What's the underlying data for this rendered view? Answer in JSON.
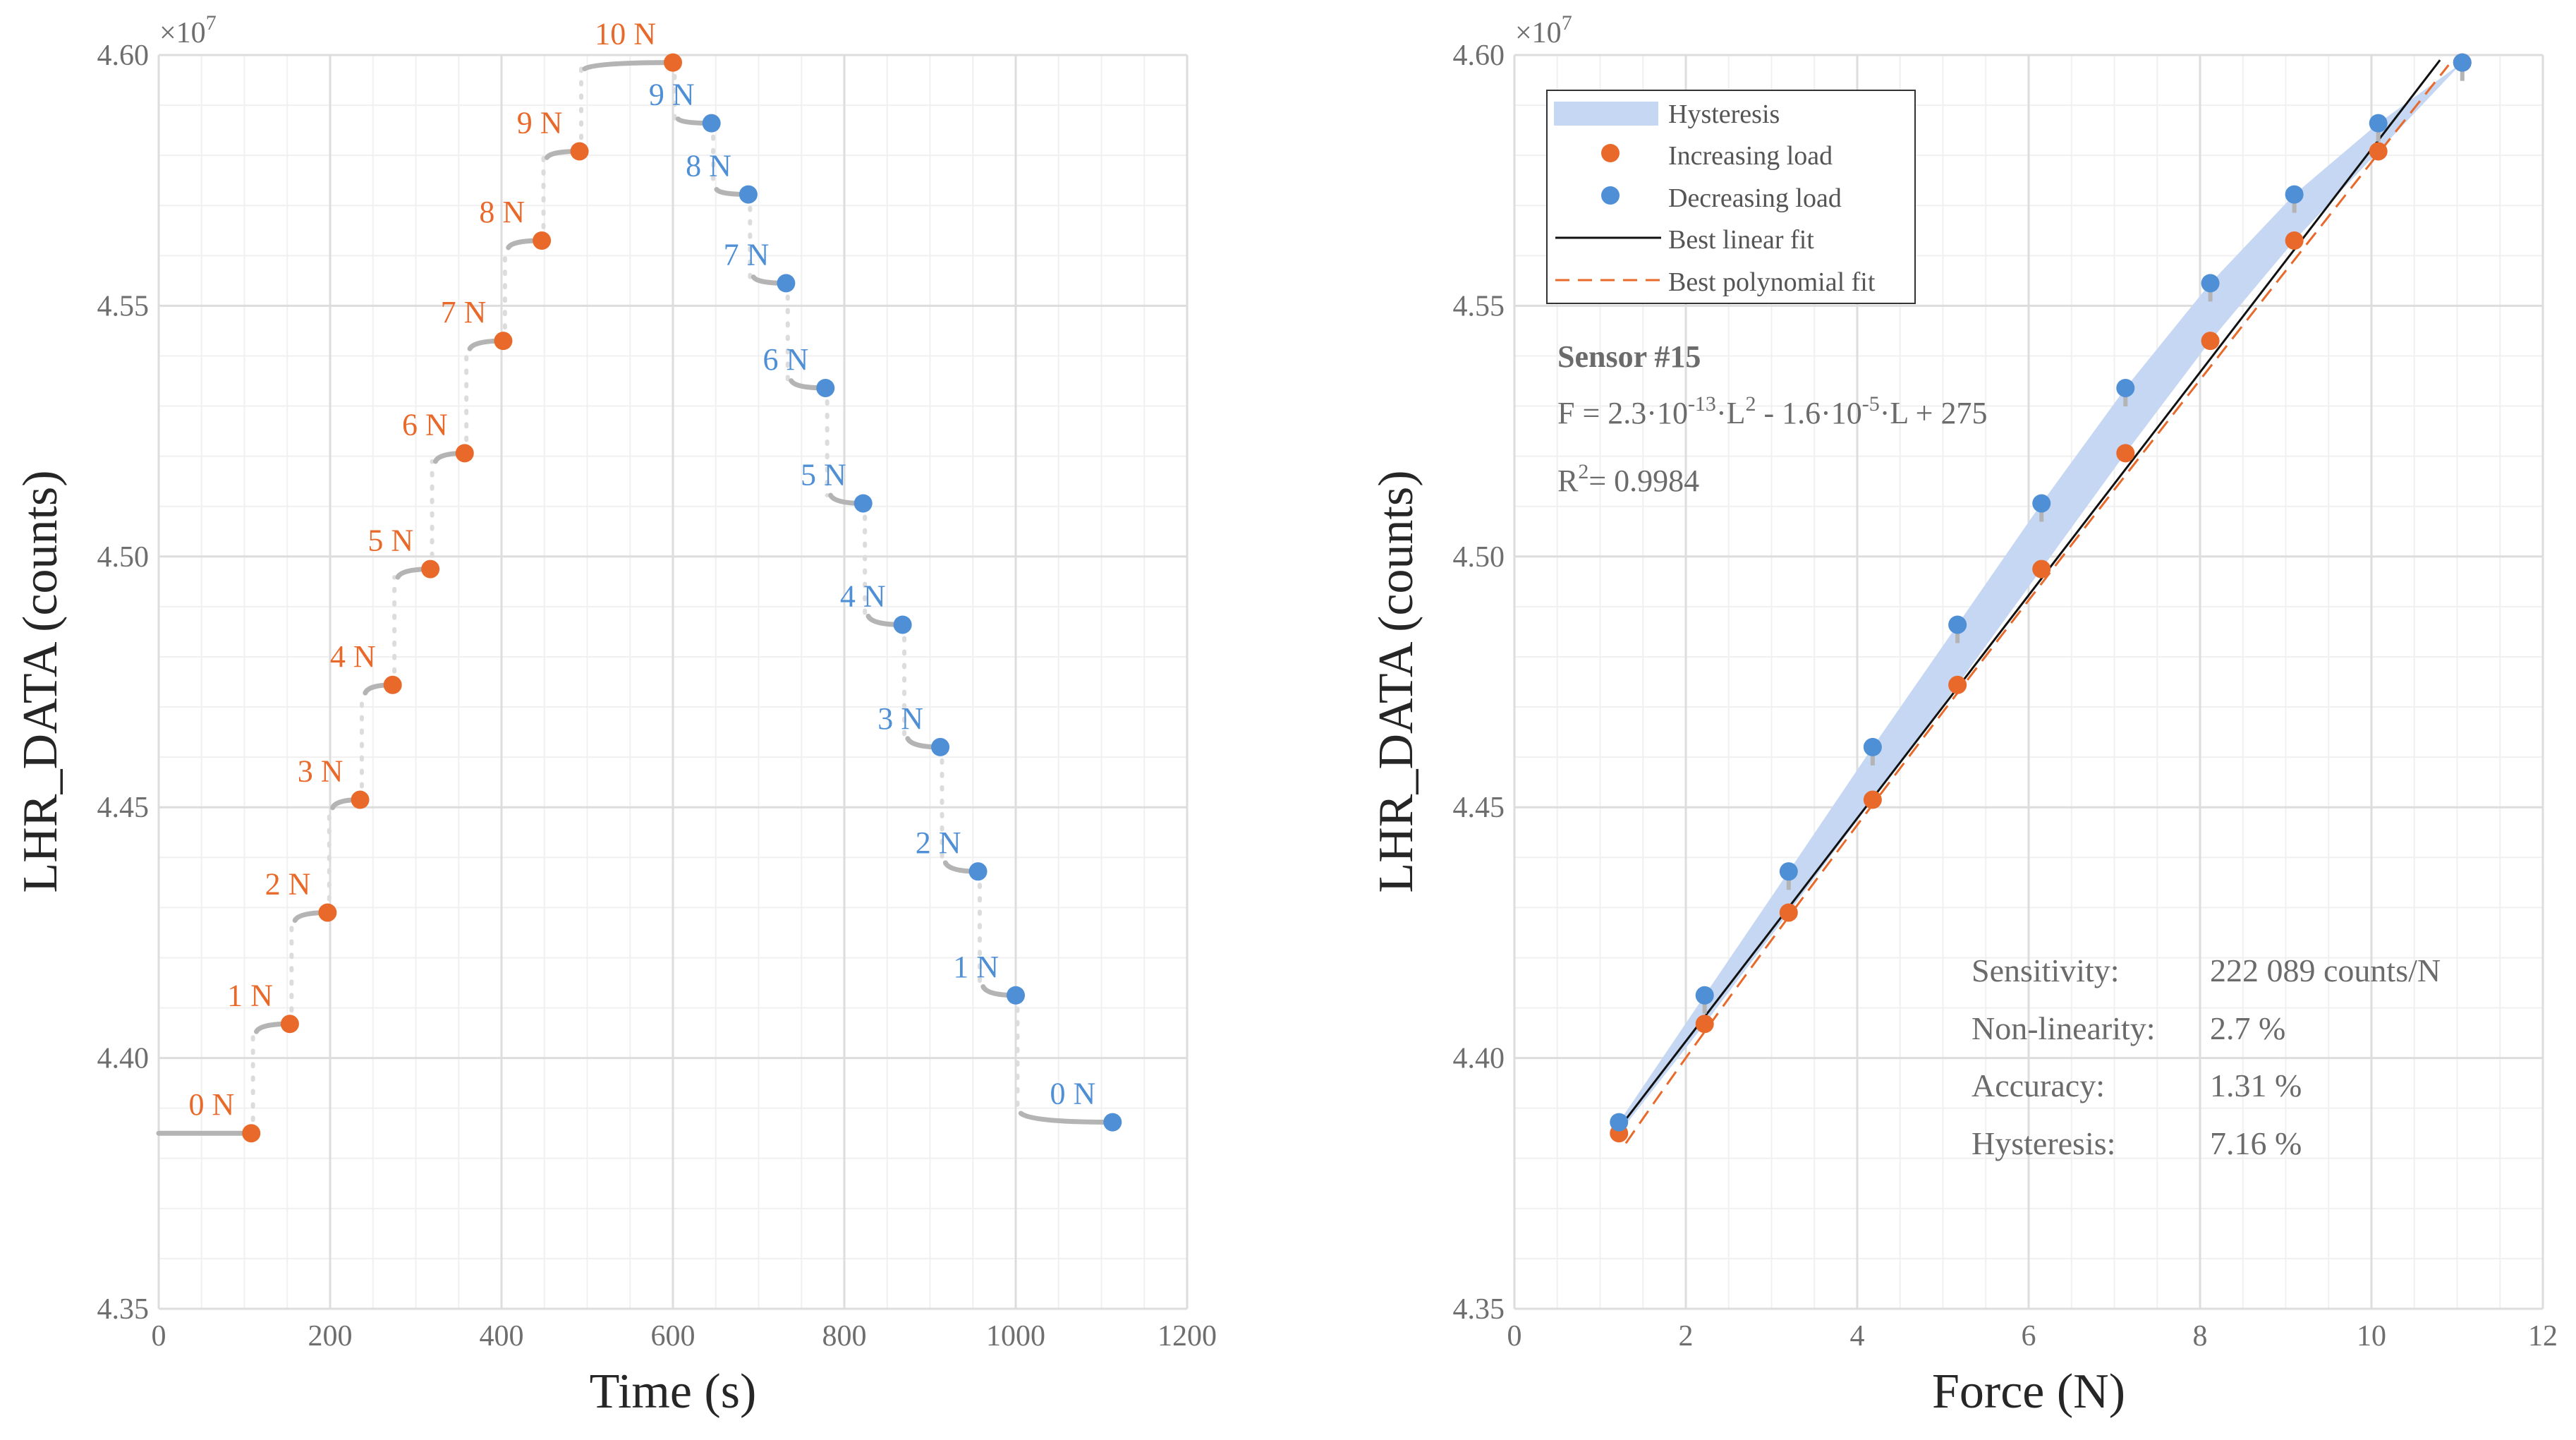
{
  "chart_data": [
    {
      "type": "scatter",
      "name": "time_series",
      "xlabel": "Time (s)",
      "ylabel": "LHR_DATA (counts)",
      "exponent_label": "×10",
      "exponent_power": "7",
      "xlim": [
        0,
        1200
      ],
      "ylim": [
        43500000,
        46000000
      ],
      "xticks": [
        0,
        200,
        400,
        600,
        800,
        1000,
        1200
      ],
      "xtick_labels": [
        "0",
        "200",
        "400",
        "600",
        "800",
        "1000",
        "1200"
      ],
      "yticks": [
        43500000,
        44000000,
        44500000,
        45000000,
        45500000,
        46000000
      ],
      "ytick_labels": [
        "4.35",
        "4.40",
        "4.45",
        "4.50",
        "4.55",
        "4.60"
      ],
      "colors": {
        "increasing": "#e8692a",
        "decreasing": "#4f8fd6",
        "trace": "#b4b4b4"
      },
      "increasing": [
        {
          "t": 108,
          "v": 43850000,
          "label": "0 N"
        },
        {
          "t": 153,
          "v": 44068000,
          "label": "1 N"
        },
        {
          "t": 197,
          "v": 44290000,
          "label": "2 N"
        },
        {
          "t": 235,
          "v": 44515000,
          "label": "3 N"
        },
        {
          "t": 273,
          "v": 44744000,
          "label": "4 N"
        },
        {
          "t": 317,
          "v": 44975000,
          "label": "5 N"
        },
        {
          "t": 357,
          "v": 45206000,
          "label": "6 N"
        },
        {
          "t": 402,
          "v": 45430000,
          "label": "7 N"
        },
        {
          "t": 447,
          "v": 45630000,
          "label": "8 N"
        },
        {
          "t": 491,
          "v": 45808000,
          "label": "9 N"
        },
        {
          "t": 600,
          "v": 45985000,
          "label": "10 N"
        }
      ],
      "decreasing": [
        {
          "t": 645,
          "v": 45864000,
          "label": "9 N"
        },
        {
          "t": 688,
          "v": 45722000,
          "label": "8 N"
        },
        {
          "t": 732,
          "v": 45545000,
          "label": "7 N"
        },
        {
          "t": 778,
          "v": 45336000,
          "label": "6 N"
        },
        {
          "t": 822,
          "v": 45106000,
          "label": "5 N"
        },
        {
          "t": 868,
          "v": 44864000,
          "label": "4 N"
        },
        {
          "t": 912,
          "v": 44620000,
          "label": "3 N"
        },
        {
          "t": 956,
          "v": 44372000,
          "label": "2 N"
        },
        {
          "t": 1000,
          "v": 44125000,
          "label": "1 N"
        },
        {
          "t": 1113,
          "v": 43872000,
          "label": "0 N"
        }
      ]
    },
    {
      "type": "scatter",
      "name": "force_calibration",
      "xlabel": "Force (N)",
      "ylabel": "LHR_DATA (counts)",
      "exponent_label": "×10",
      "exponent_power": "7",
      "xlim": [
        0,
        12
      ],
      "ylim": [
        43500000,
        46000000
      ],
      "xticks": [
        0,
        2,
        4,
        6,
        8,
        10,
        12
      ],
      "xtick_labels": [
        "0",
        "2",
        "4",
        "6",
        "8",
        "10",
        "12"
      ],
      "yticks": [
        43500000,
        44000000,
        44500000,
        45000000,
        45500000,
        46000000
      ],
      "ytick_labels": [
        "4.35",
        "4.40",
        "4.45",
        "4.50",
        "4.55",
        "4.60"
      ],
      "colors": {
        "increasing": "#e8692a",
        "decreasing": "#4f8fd6",
        "band": "#c5d7f2",
        "linear": "#111111",
        "poly": "#e8692a"
      },
      "series": [
        {
          "name": "Increasing load",
          "x": [
            1.22,
            2.22,
            3.2,
            4.18,
            5.17,
            6.15,
            7.13,
            8.12,
            9.1,
            10.08,
            11.06
          ],
          "values": [
            43850000,
            44068000,
            44290000,
            44515000,
            44744000,
            44975000,
            45206000,
            45430000,
            45630000,
            45808000,
            45985000
          ]
        },
        {
          "name": "Decreasing load",
          "x": [
            1.22,
            2.22,
            3.2,
            4.18,
            5.17,
            6.15,
            7.13,
            8.12,
            9.1,
            10.08,
            11.06
          ],
          "values": [
            43872000,
            44125000,
            44372000,
            44620000,
            44864000,
            45106000,
            45336000,
            45545000,
            45722000,
            45864000,
            45985000
          ]
        }
      ],
      "linear_fit": [
        [
          1.22,
          43860000
        ],
        [
          10.8,
          45990000
        ]
      ],
      "poly_fit": [
        [
          1.3,
          43830000
        ],
        [
          5.0,
          44690000
        ],
        [
          10.9,
          45980000
        ]
      ],
      "legend": {
        "placement": "top-left",
        "entries": [
          "Hysteresis",
          "Increasing load",
          "Decreasing load",
          "Best linear fit",
          "Best polynomial fit"
        ]
      },
      "annotation": {
        "sensor": "Sensor #15",
        "eq_prefix": "F = 2.3·10",
        "eq_exp1": "-13",
        "eq_mid": "·L",
        "eq_sq": "2",
        "eq_mid2": " - 1.6·10",
        "eq_exp2": "-5",
        "eq_end": "·L + 275",
        "r2_prefix": "R",
        "r2_sup": "2",
        "r2_value": "= 0.9984"
      },
      "stats": [
        {
          "name": "Sensitivity:",
          "value": "222 089 counts/N"
        },
        {
          "name": "Non-linearity:",
          "value": "2.7 %"
        },
        {
          "name": "Accuracy:",
          "value": "1.31 %"
        },
        {
          "name": "Hysteresis:",
          "value": "7.16 %"
        }
      ]
    }
  ]
}
